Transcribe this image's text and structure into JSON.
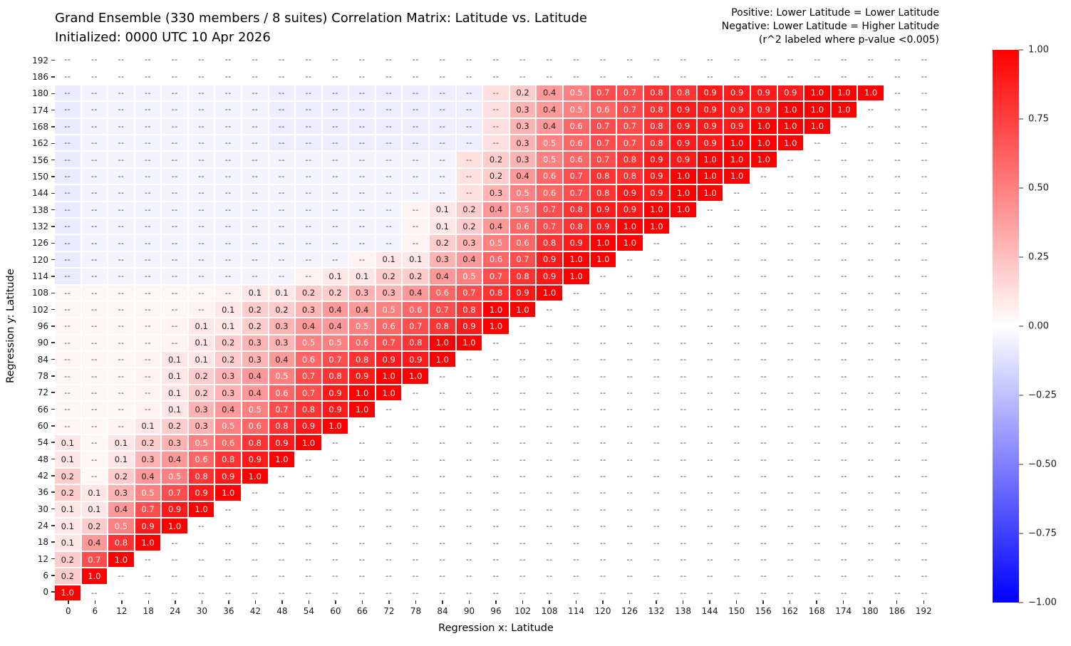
{
  "chart_data": {
    "type": "heatmap",
    "title": "Grand Ensemble (330 members / 8 suites) Correlation Matrix: Latitude vs. Latitude",
    "subtitle": "Initialized: 0000 UTC 10 Apr 2026",
    "annotation": {
      "line1": "Positive: Lower Latitude = Lower Latitude",
      "line2": "Negative: Lower Latitude = Higher Latitude",
      "line3": "(r^2 labeled where p-value <0.005)"
    },
    "xlabel": "Regression x: Latitude",
    "ylabel": "Regression y: Latitude",
    "x_step": 6,
    "x_ticks": [
      0,
      6,
      12,
      18,
      24,
      30,
      36,
      42,
      48,
      54,
      60,
      66,
      72,
      78,
      84,
      90,
      96,
      102,
      108,
      114,
      120,
      126,
      132,
      138,
      144,
      150,
      156,
      162,
      168,
      174,
      180,
      186,
      192
    ],
    "y_ticks_top_to_bottom": [
      192,
      186,
      180,
      174,
      168,
      162,
      156,
      150,
      144,
      138,
      132,
      126,
      120,
      114,
      108,
      102,
      96,
      90,
      84,
      78,
      72,
      66,
      60,
      54,
      48,
      42,
      36,
      30,
      24,
      18,
      12,
      6,
      0
    ],
    "value_range": [
      -1,
      1
    ],
    "missing_label": "--",
    "label_text_rule": "r^2 labeled where p-value <0.005; non-significant cells shown as --",
    "rows": [
      {
        "y": 192,
        "segments": []
      },
      {
        "y": 186,
        "segments": []
      },
      {
        "y": 180,
        "segments": [
          {
            "start_x": 102,
            "values": [
              0.2,
              0.4,
              0.5,
              0.7,
              0.7,
              0.8,
              0.8,
              0.9,
              0.9,
              0.9,
              0.9,
              1.0,
              1.0,
              1.0
            ]
          }
        ]
      },
      {
        "y": 174,
        "segments": [
          {
            "start_x": 102,
            "values": [
              0.3,
              0.4,
              0.5,
              0.6,
              0.7,
              0.8,
              0.9,
              0.9,
              0.9,
              0.9,
              1.0,
              1.0,
              1.0
            ]
          }
        ]
      },
      {
        "y": 168,
        "segments": [
          {
            "start_x": 102,
            "values": [
              0.3,
              0.4,
              0.6,
              0.7,
              0.7,
              0.8,
              0.9,
              0.9,
              0.9,
              1.0,
              1.0,
              1.0
            ]
          }
        ]
      },
      {
        "y": 162,
        "segments": [
          {
            "start_x": 102,
            "values": [
              0.3,
              0.5,
              0.6,
              0.7,
              0.7,
              0.8,
              0.9,
              0.9,
              1.0,
              1.0,
              1.0
            ]
          }
        ]
      },
      {
        "y": 156,
        "segments": [
          {
            "start_x": 96,
            "values": [
              0.2,
              0.3,
              0.5,
              0.6,
              0.7,
              0.8,
              0.9,
              0.9,
              1.0,
              1.0,
              1.0
            ]
          }
        ]
      },
      {
        "y": 150,
        "segments": [
          {
            "start_x": 96,
            "values": [
              0.2,
              0.4,
              0.6,
              0.7,
              0.8,
              0.8,
              0.9,
              1.0,
              1.0,
              1.0
            ]
          }
        ]
      },
      {
        "y": 144,
        "segments": [
          {
            "start_x": 96,
            "values": [
              0.3,
              0.5,
              0.6,
              0.7,
              0.8,
              0.9,
              0.9,
              1.0,
              1.0
            ]
          }
        ]
      },
      {
        "y": 138,
        "segments": [
          {
            "start_x": 84,
            "values": [
              0.1,
              0.2,
              0.4,
              0.5,
              0.7,
              0.8,
              0.9,
              0.9,
              1.0,
              1.0
            ]
          }
        ]
      },
      {
        "y": 132,
        "segments": [
          {
            "start_x": 84,
            "values": [
              0.1,
              0.2,
              0.4,
              0.6,
              0.7,
              0.8,
              0.9,
              1.0,
              1.0
            ]
          }
        ]
      },
      {
        "y": 126,
        "segments": [
          {
            "start_x": 84,
            "values": [
              0.2,
              0.3,
              0.5,
              0.6,
              0.8,
              0.9,
              1.0,
              1.0
            ]
          }
        ]
      },
      {
        "y": 120,
        "segments": [
          {
            "start_x": 72,
            "values": [
              0.1,
              0.1,
              0.3,
              0.4,
              0.6,
              0.7,
              0.9,
              1.0,
              1.0
            ]
          }
        ]
      },
      {
        "y": 114,
        "segments": [
          {
            "start_x": 60,
            "values": [
              0.1,
              0.1,
              0.2,
              0.2,
              0.4,
              0.5,
              0.7,
              0.8,
              0.9,
              1.0
            ]
          }
        ]
      },
      {
        "y": 108,
        "segments": [
          {
            "start_x": 42,
            "values": [
              0.1,
              0.1,
              0.2,
              0.2,
              0.3,
              0.3,
              0.4,
              0.6,
              0.7,
              0.8,
              0.9,
              1.0
            ]
          }
        ]
      },
      {
        "y": 102,
        "segments": [
          {
            "start_x": 36,
            "values": [
              0.1,
              0.2,
              0.2,
              0.3,
              0.4,
              0.4,
              0.5,
              0.6,
              0.7,
              0.8,
              1.0,
              1.0
            ]
          }
        ]
      },
      {
        "y": 96,
        "segments": [
          {
            "start_x": 30,
            "values": [
              0.1,
              0.1,
              0.2,
              0.3,
              0.4,
              0.4,
              0.5,
              0.6,
              0.7,
              0.8,
              0.9,
              1.0
            ]
          }
        ]
      },
      {
        "y": 90,
        "segments": [
          {
            "start_x": 30,
            "values": [
              0.1,
              0.2,
              0.3,
              0.3,
              0.5,
              0.5,
              0.6,
              0.7,
              0.8,
              1.0,
              1.0
            ]
          }
        ]
      },
      {
        "y": 84,
        "segments": [
          {
            "start_x": 24,
            "values": [
              0.1,
              0.1,
              0.2,
              0.3,
              0.4,
              0.6,
              0.7,
              0.8,
              0.9,
              0.9,
              1.0
            ]
          }
        ]
      },
      {
        "y": 78,
        "segments": [
          {
            "start_x": 24,
            "values": [
              0.1,
              0.2,
              0.3,
              0.4,
              0.5,
              0.7,
              0.8,
              0.9,
              1.0,
              1.0
            ]
          }
        ]
      },
      {
        "y": 72,
        "segments": [
          {
            "start_x": 24,
            "values": [
              0.1,
              0.2,
              0.3,
              0.4,
              0.6,
              0.7,
              0.9,
              1.0,
              1.0
            ]
          }
        ]
      },
      {
        "y": 66,
        "segments": [
          {
            "start_x": 24,
            "values": [
              0.1,
              0.3,
              0.4,
              0.5,
              0.7,
              0.8,
              0.9,
              1.0
            ]
          }
        ]
      },
      {
        "y": 60,
        "segments": [
          {
            "start_x": 18,
            "values": [
              0.1,
              0.2,
              0.3,
              0.5,
              0.6,
              0.8,
              0.9,
              1.0
            ]
          }
        ]
      },
      {
        "y": 54,
        "segments": [
          {
            "start_x": 0,
            "values": [
              0.1
            ]
          },
          {
            "start_x": 12,
            "values": [
              0.1,
              0.2,
              0.3,
              0.5,
              0.6,
              0.8,
              0.9,
              1.0
            ]
          }
        ]
      },
      {
        "y": 48,
        "segments": [
          {
            "start_x": 0,
            "values": [
              0.1
            ]
          },
          {
            "start_x": 12,
            "values": [
              0.1,
              0.3,
              0.4,
              0.6,
              0.8,
              0.9,
              1.0
            ]
          }
        ]
      },
      {
        "y": 42,
        "segments": [
          {
            "start_x": 0,
            "values": [
              0.2
            ]
          },
          {
            "start_x": 12,
            "values": [
              0.2,
              0.4,
              0.5,
              0.8,
              0.9,
              1.0
            ]
          }
        ]
      },
      {
        "y": 36,
        "segments": [
          {
            "start_x": 0,
            "values": [
              0.2,
              0.1,
              0.3,
              0.5,
              0.7,
              0.9,
              1.0
            ]
          }
        ]
      },
      {
        "y": 30,
        "segments": [
          {
            "start_x": 0,
            "values": [
              0.1,
              0.1,
              0.4,
              0.7,
              0.9,
              1.0
            ]
          }
        ]
      },
      {
        "y": 24,
        "segments": [
          {
            "start_x": 0,
            "values": [
              0.1,
              0.2,
              0.5,
              0.9,
              1.0
            ]
          }
        ]
      },
      {
        "y": 18,
        "segments": [
          {
            "start_x": 0,
            "values": [
              0.1,
              0.4,
              0.8,
              1.0
            ]
          }
        ]
      },
      {
        "y": 12,
        "segments": [
          {
            "start_x": 0,
            "values": [
              0.2,
              0.7,
              1.0
            ]
          }
        ]
      },
      {
        "y": 6,
        "segments": [
          {
            "start_x": 0,
            "values": [
              0.2,
              1.0
            ]
          }
        ]
      },
      {
        "y": 0,
        "segments": [
          {
            "start_x": 0,
            "values": [
              1.0
            ]
          }
        ]
      }
    ]
  },
  "colorbar": {
    "colormap": "blue-white-red",
    "top_color": "#ff0000",
    "mid_color": "#ffffff",
    "bottom_color": "#0000ff",
    "tick_labels": [
      "1.00",
      "0.75",
      "0.50",
      "0.25",
      "0.00",
      "−0.25",
      "−0.50",
      "−0.75",
      "−1.00"
    ]
  },
  "colors": {
    "cell_text_dark": "#1f1f1f",
    "cell_text_light": "#ffffff",
    "missing_text": "#3a3a3a",
    "tick_color": "#262626"
  }
}
